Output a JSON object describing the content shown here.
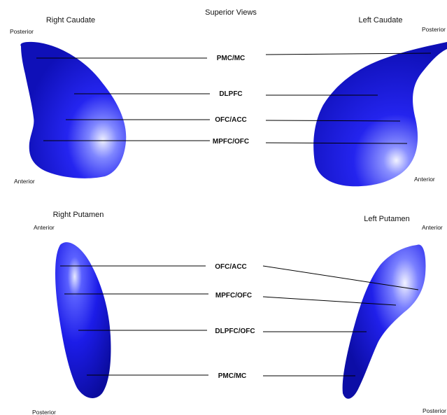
{
  "title": "Superior Views",
  "structures": {
    "right_caudate": {
      "name": "Right Caudate",
      "top": "Posterior",
      "bottom": "Anterior"
    },
    "left_caudate": {
      "name": "Left Caudate",
      "top": "Posterior",
      "bottom": "Anterior"
    },
    "right_putamen": {
      "name": "Right Putamen",
      "top": "Anterior",
      "bottom": "Posterior"
    },
    "left_putamen": {
      "name": "Left Putamen",
      "top": "Anterior",
      "bottom": "Posterior"
    }
  },
  "caudate_regions": [
    "PMC/MC",
    "DLPFC",
    "OFC/ACC",
    "MPFC/OFC"
  ],
  "putamen_regions": [
    "OFC/ACC",
    "MPFC/OFC",
    "DLPFC/OFC",
    "PMC/MC"
  ],
  "colors": {
    "structure": "#1a1ae6",
    "highlight": "#e8ecff",
    "dark": "#0a0a8c"
  }
}
